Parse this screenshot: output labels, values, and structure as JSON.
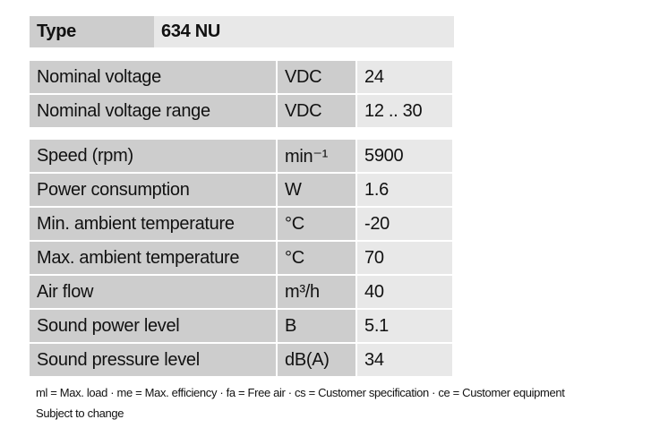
{
  "type_row": {
    "label": "Type",
    "value": "634 NU"
  },
  "groups": [
    [
      [
        "Nominal voltage",
        "VDC",
        "24"
      ],
      [
        "Nominal voltage range",
        "VDC",
        "12 .. 30"
      ]
    ],
    [
      [
        "Speed (rpm)",
        "min⁻¹",
        "5900"
      ],
      [
        "Power consumption",
        "W",
        "1.6"
      ],
      [
        "Min. ambient temperature",
        "°C",
        "-20"
      ],
      [
        "Max. ambient temperature",
        "°C",
        "70"
      ],
      [
        "Air flow",
        "m³/h",
        "40"
      ],
      [
        "Sound power level",
        "B",
        "5.1"
      ],
      [
        "Sound pressure level",
        "dB(A)",
        "34"
      ]
    ]
  ],
  "footer": {
    "legend": "ml = Max. load · me = Max. efficiency · fa = Free air · cs = Customer specification · ce = Customer equipment",
    "note": "Subject to change"
  }
}
